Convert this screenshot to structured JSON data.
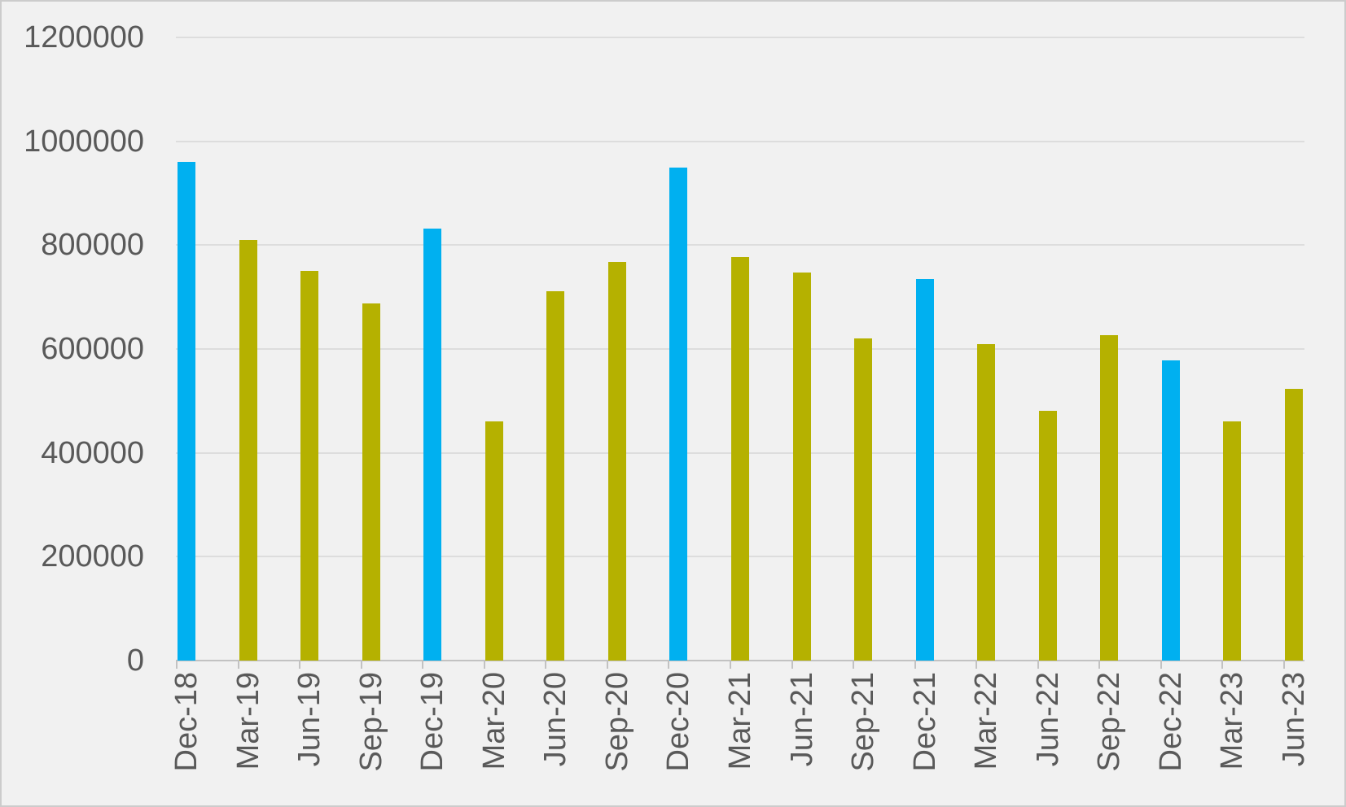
{
  "chart_data": {
    "type": "bar",
    "title": "",
    "xlabel": "",
    "ylabel": "",
    "categories": [
      "Dec-18",
      "Mar-19",
      "Jun-19",
      "Sep-19",
      "Dec-19",
      "Mar-20",
      "Jun-20",
      "Sep-20",
      "Dec-20",
      "Mar-21",
      "Jun-21",
      "Sep-21",
      "Dec-21",
      "Mar-22",
      "Jun-22",
      "Sep-22",
      "Dec-22",
      "Mar-23",
      "Jun-23"
    ],
    "values": [
      960000,
      810000,
      750000,
      688000,
      832000,
      460000,
      711000,
      768000,
      950000,
      777000,
      747000,
      620000,
      735000,
      610000,
      481000,
      627000,
      578000,
      461000,
      523000
    ],
    "bar_colors": [
      "#00B0F0",
      "#B5B100",
      "#B5B100",
      "#B5B100",
      "#00B0F0",
      "#B5B100",
      "#B5B100",
      "#B5B100",
      "#00B0F0",
      "#B5B100",
      "#B5B100",
      "#B5B100",
      "#00B0F0",
      "#B5B100",
      "#B5B100",
      "#B5B100",
      "#00B0F0",
      "#B5B100",
      "#B5B100"
    ],
    "ylim": [
      0,
      1200000
    ],
    "yticks": [
      0,
      200000,
      400000,
      600000,
      800000,
      1000000,
      1200000
    ],
    "ytick_labels": [
      "0",
      "200000",
      "400000",
      "600000",
      "800000",
      "1000000",
      "1200000"
    ],
    "grid": "horizontal",
    "legend": "none",
    "x_tick_label_rotation": 90
  },
  "styles": {
    "background": "#f1f1f1",
    "border": "#cccccc",
    "gridline": "#dddddd",
    "axis_line": "#c2c2c2",
    "text": "#595959",
    "bar_blue": "#00B0F0",
    "bar_olive": "#B5B100"
  }
}
